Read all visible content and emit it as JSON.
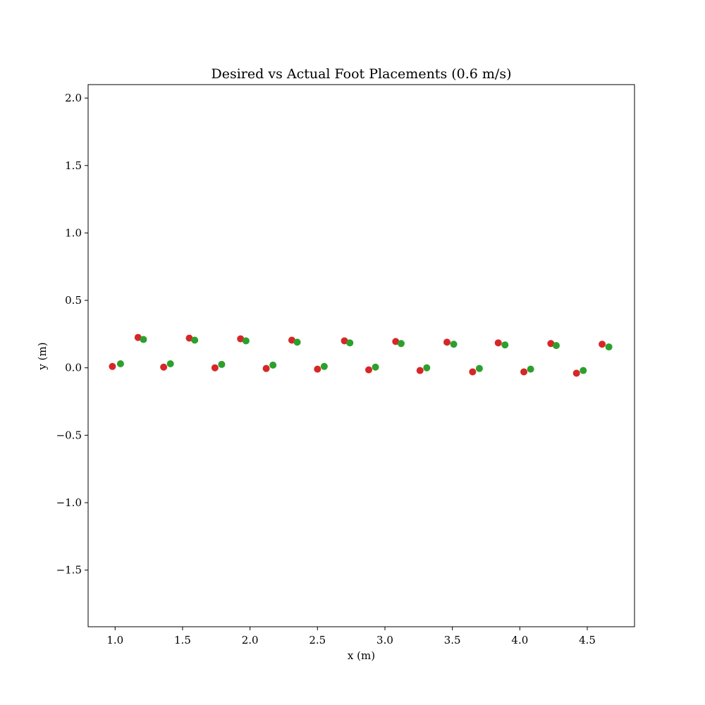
{
  "chart_data": {
    "type": "scatter",
    "title": "Desired vs Actual Foot Placements (0.6 m/s)",
    "xlabel": "x (m)",
    "ylabel": "y (m)",
    "xlim": [
      0.8,
      4.85
    ],
    "ylim": [
      -1.92,
      2.1
    ],
    "xticks": [
      1.0,
      1.5,
      2.0,
      2.5,
      3.0,
      3.5,
      4.0,
      4.5
    ],
    "xtick_labels": [
      "1.0",
      "1.5",
      "2.0",
      "2.5",
      "3.0",
      "3.5",
      "4.0",
      "4.5"
    ],
    "yticks": [
      -1.5,
      -1.0,
      -0.5,
      0.0,
      0.5,
      1.0,
      1.5,
      2.0
    ],
    "ytick_labels": [
      "−1.5",
      "−1.0",
      "−0.5",
      "0.0",
      "0.5",
      "1.0",
      "1.5",
      "2.0"
    ],
    "grid": false,
    "legend": false,
    "series": [
      {
        "color": "#d62728",
        "x": [
          0.98,
          1.17,
          1.36,
          1.55,
          1.74,
          1.93,
          2.12,
          2.31,
          2.5,
          2.7,
          2.88,
          3.08,
          3.26,
          3.46,
          3.65,
          3.84,
          4.03,
          4.23,
          4.42,
          4.61
        ],
        "y": [
          0.01,
          0.225,
          0.005,
          0.22,
          0.0,
          0.215,
          -0.005,
          0.205,
          -0.01,
          0.2,
          -0.015,
          0.195,
          -0.02,
          0.19,
          -0.03,
          0.185,
          -0.03,
          0.18,
          -0.04,
          0.175
        ]
      },
      {
        "color": "#2ca02c",
        "x": [
          1.04,
          1.21,
          1.41,
          1.59,
          1.79,
          1.97,
          2.17,
          2.35,
          2.55,
          2.74,
          2.93,
          3.12,
          3.31,
          3.51,
          3.7,
          3.89,
          4.08,
          4.27,
          4.47,
          4.66
        ],
        "y": [
          0.03,
          0.21,
          0.03,
          0.205,
          0.025,
          0.2,
          0.02,
          0.19,
          0.01,
          0.185,
          0.005,
          0.18,
          0.0,
          0.175,
          -0.005,
          0.17,
          -0.01,
          0.165,
          -0.02,
          0.155
        ]
      }
    ]
  }
}
